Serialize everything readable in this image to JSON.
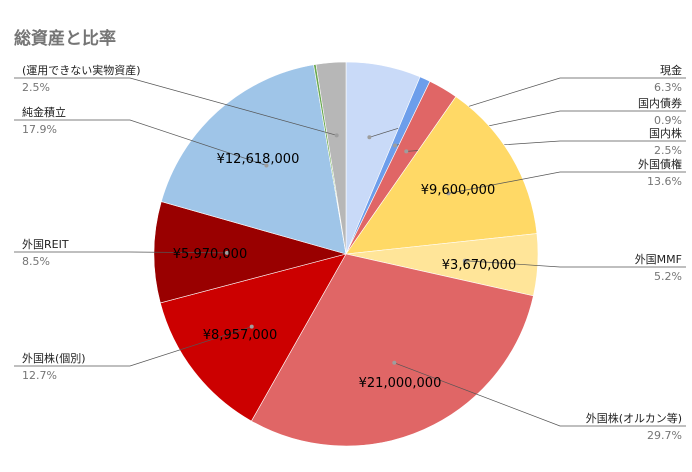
{
  "chart_data": {
    "type": "pie",
    "title": "総資産と比率",
    "slices": [
      {
        "label": "現金",
        "percent": "6.3%",
        "value": 6.3,
        "color": "#c9daf8",
        "amount": ""
      },
      {
        "label": "国内債券",
        "percent": "0.9%",
        "value": 0.9,
        "color": "#6d9eeb",
        "amount": ""
      },
      {
        "label": "国内株",
        "percent": "2.5%",
        "value": 2.5,
        "color": "#e06666",
        "amount": ""
      },
      {
        "label": "外国債権",
        "percent": "13.6%",
        "value": 13.6,
        "color": "#ffd966",
        "amount": "¥9,600,000"
      },
      {
        "label": "外国MMF",
        "percent": "5.2%",
        "value": 5.2,
        "color": "#ffe599",
        "amount": "¥3,670,000"
      },
      {
        "label": "外国株(オルカン等)",
        "percent": "29.7%",
        "value": 29.7,
        "color": "#e06666",
        "amount": "¥21,000,000"
      },
      {
        "label": "外国株(個別)",
        "percent": "12.7%",
        "value": 12.7,
        "color": "#cc0000",
        "amount": "¥8,957,000"
      },
      {
        "label": "外国REIT",
        "percent": "8.5%",
        "value": 8.5,
        "color": "#990000",
        "amount": "¥5,970,000"
      },
      {
        "label": "純金積立",
        "percent": "17.9%",
        "value": 17.9,
        "color": "#9fc5e8",
        "amount": "¥12,618,000"
      },
      {
        "label": "",
        "percent": "",
        "value": 0.2,
        "color": "#6aa84f",
        "amount": ""
      },
      {
        "label": "(運用できない実物資産)",
        "percent": "2.5%",
        "value": 2.5,
        "color": "#b7b7b7",
        "amount": ""
      }
    ]
  }
}
